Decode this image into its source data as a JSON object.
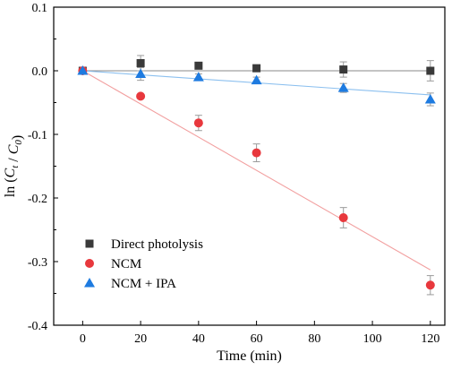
{
  "chart_data": {
    "type": "scatter",
    "xlabel": "Time (min)",
    "ylabel_parts": [
      "ln (",
      "C",
      "t",
      " / ",
      "C",
      "0",
      ")"
    ],
    "xlim": [
      -10,
      125
    ],
    "ylim": [
      -0.4,
      0.1
    ],
    "xticks": [
      0,
      20,
      40,
      60,
      80,
      100,
      120
    ],
    "xtick_labels": [
      "0",
      "20",
      "40",
      "60",
      "80",
      "100",
      "120"
    ],
    "yticks": [
      0.1,
      0.0,
      -0.1,
      -0.2,
      -0.3,
      -0.4
    ],
    "ytick_labels": [
      "0.1",
      "0.0",
      "-0.1",
      "-0.2",
      "-0.3",
      "-0.4"
    ],
    "grid": false,
    "legend_position": "bottom-left",
    "series": [
      {
        "name": "Direct photolysis",
        "marker": "square",
        "color": "#3a3a3a",
        "x": [
          0,
          20,
          40,
          60,
          90,
          120
        ],
        "y": [
          0.0,
          0.012,
          0.008,
          0.004,
          0.002,
          0.0
        ],
        "err": [
          0.003,
          0.012,
          0.004,
          0.004,
          0.012,
          0.016
        ],
        "fit": [
          [
            0,
            0.0
          ],
          [
            120,
            0.0
          ]
        ],
        "fit_color": "#8a8a8a"
      },
      {
        "name": "NCM",
        "marker": "circle",
        "color": "#e8383d",
        "x": [
          0,
          20,
          40,
          60,
          90,
          120
        ],
        "y": [
          0.0,
          -0.04,
          -0.082,
          -0.129,
          -0.231,
          -0.337
        ],
        "err": [
          0.003,
          0.003,
          0.012,
          0.014,
          0.016,
          0.015
        ],
        "fit": [
          [
            0,
            0.0
          ],
          [
            120,
            -0.313
          ]
        ],
        "fit_color": "#f2a0a0"
      },
      {
        "name": "NCM + IPA",
        "marker": "triangle",
        "color": "#1e7be0",
        "x": [
          0,
          20,
          40,
          60,
          90,
          120
        ],
        "y": [
          0.0,
          -0.005,
          -0.01,
          -0.015,
          -0.027,
          -0.045
        ],
        "err": [
          0.003,
          0.01,
          0.005,
          0.005,
          0.007,
          0.01
        ],
        "fit": [
          [
            0,
            0.0
          ],
          [
            120,
            -0.038
          ]
        ],
        "fit_color": "#8cc0ef"
      }
    ]
  }
}
